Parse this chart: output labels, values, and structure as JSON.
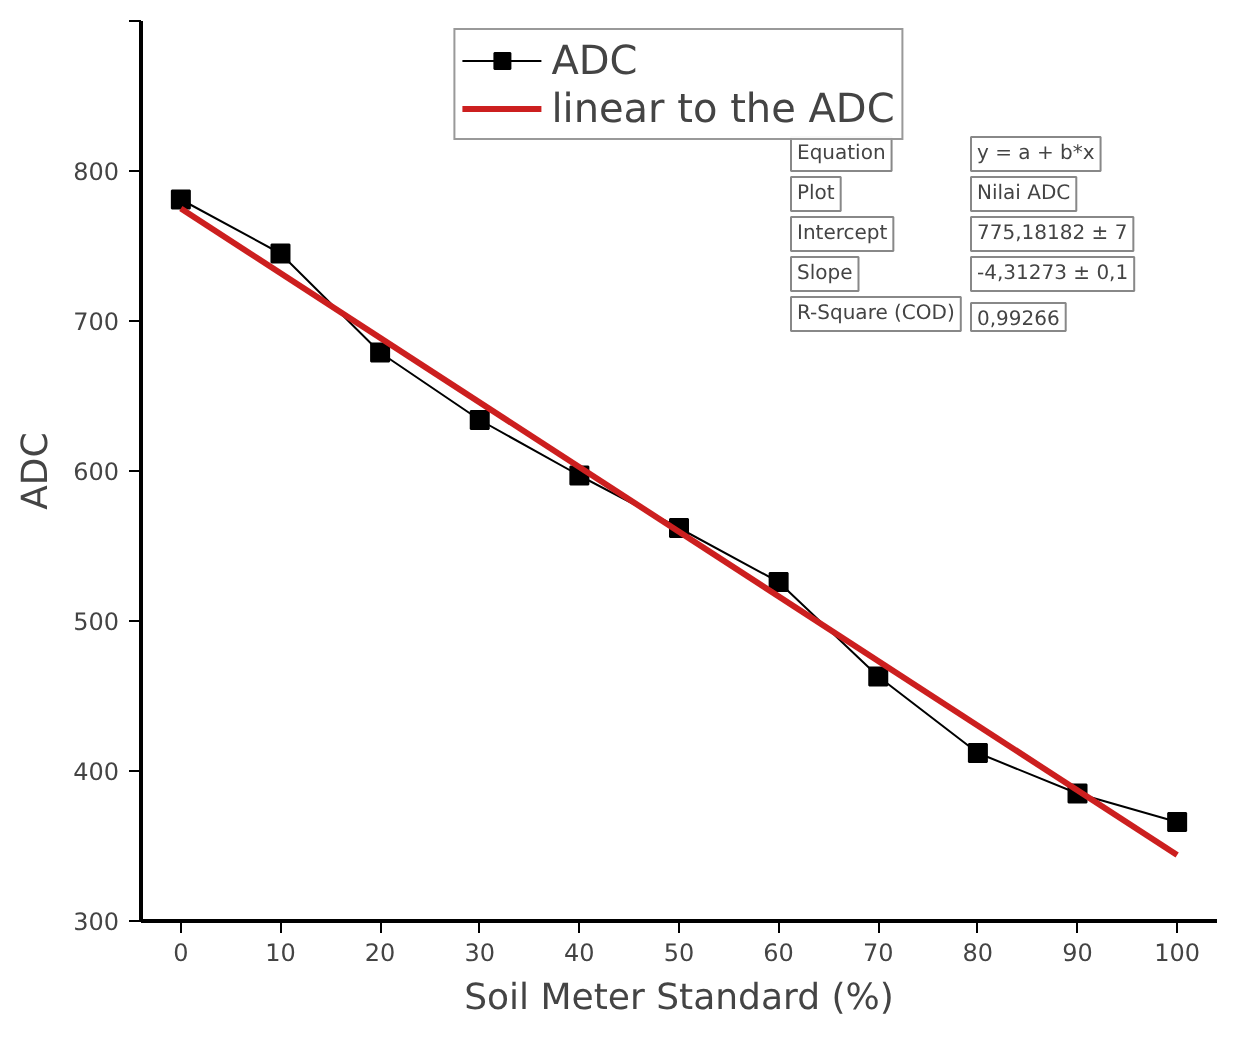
{
  "chart_data": {
    "type": "line",
    "xlabel": "Soil Meter Standard (%)",
    "ylabel": "ADC",
    "xlim": [
      -4,
      104
    ],
    "ylim": [
      300,
      900
    ],
    "xticks": [
      0,
      10,
      20,
      30,
      40,
      50,
      60,
      70,
      80,
      90,
      100
    ],
    "yticks": [
      300,
      400,
      500,
      600,
      700,
      800,
      {
        "value": 900,
        "label": null
      }
    ],
    "x": [
      0,
      10,
      20,
      30,
      40,
      50,
      60,
      70,
      80,
      90,
      100
    ],
    "series": [
      {
        "name": "ADC",
        "color": "#000000",
        "marker": "square",
        "values": [
          781,
          745,
          679,
          634,
          597,
          562,
          526,
          463,
          412,
          385,
          366
        ]
      },
      {
        "name": "linear to the ADC",
        "color": "#cc1f1f",
        "marker": "none",
        "x": [
          0,
          100
        ],
        "values": [
          775,
          344
        ]
      }
    ],
    "legend": "top",
    "grid": false,
    "annotations": [
      "Equation",
      "y = a + b*x",
      "Plot",
      "Nilai ADC",
      "Intercept",
      "775,18182 ± 7",
      "Slope",
      "-4,31273 ± 0,1",
      "R-Square (COD)",
      "0,99266"
    ]
  }
}
